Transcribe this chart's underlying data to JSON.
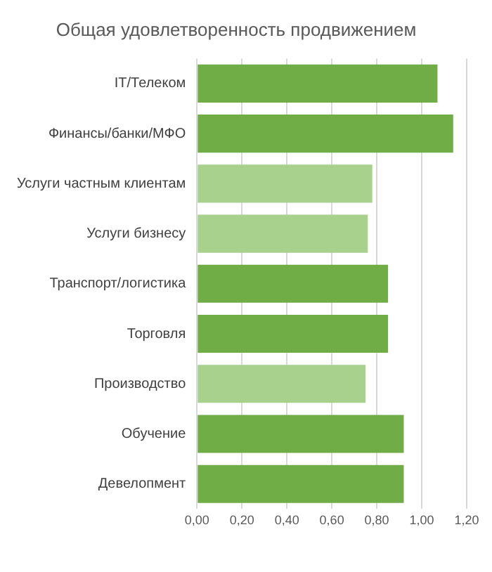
{
  "chart_data": {
    "type": "bar",
    "orientation": "horizontal",
    "title": "Общая удовлетворенность продвижением",
    "categories": [
      "IT/Телеком",
      "Финансы/банки/МФО",
      "Услуги частным клиентам",
      "Услуги бизнесу",
      "Транспорт/логистика",
      "Торговля",
      "Производство",
      "Обучение",
      "Девелопмент"
    ],
    "values": [
      1.07,
      1.14,
      0.78,
      0.76,
      0.85,
      0.85,
      0.75,
      0.92,
      0.92
    ],
    "colors": [
      "#70ad47",
      "#70ad47",
      "#a9d18e",
      "#a9d18e",
      "#70ad47",
      "#70ad47",
      "#a9d18e",
      "#70ad47",
      "#70ad47"
    ],
    "xlim": [
      0,
      1.2
    ],
    "xticks": [
      {
        "value": 0,
        "label": "0,00"
      },
      {
        "value": 0.2,
        "label": "0,20"
      },
      {
        "value": 0.4,
        "label": "0,40"
      },
      {
        "value": 0.6,
        "label": "0,60"
      },
      {
        "value": 0.8,
        "label": "0,80"
      },
      {
        "value": 1,
        "label": "1,00"
      },
      {
        "value": 1.2,
        "label": "1,20"
      }
    ],
    "grid": "x",
    "legend": false
  }
}
